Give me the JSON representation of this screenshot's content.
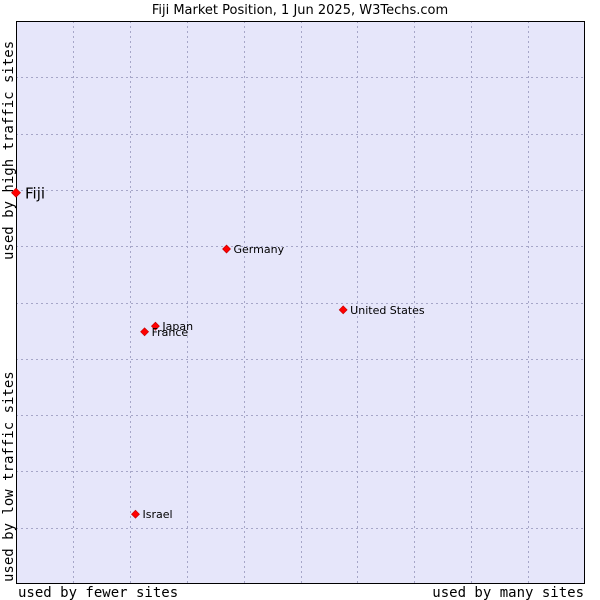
{
  "chart_data": {
    "type": "scatter",
    "title": "Fiji Market Position, 1 Jun 2025, W3Techs.com",
    "xlabel_left": "used by fewer sites",
    "xlabel_right": "used by many sites",
    "ylabel_bottom": "used by low traffic sites",
    "ylabel_top": "used by high traffic sites",
    "xlim": [
      0,
      100
    ],
    "ylim": [
      0,
      100
    ],
    "grid": true,
    "points": [
      {
        "name": "Fiji",
        "x": 0,
        "y": 69.5,
        "highlight": true
      },
      {
        "name": "Germany",
        "x": 37,
        "y": 59.5
      },
      {
        "name": "United States",
        "x": 57.5,
        "y": 48.7
      },
      {
        "name": "Japan",
        "x": 24.5,
        "y": 45.8
      },
      {
        "name": "France",
        "x": 22.6,
        "y": 44.8
      },
      {
        "name": "Israel",
        "x": 21,
        "y": 12.4
      }
    ],
    "colors": {
      "plot_bg": "#e6e6fa",
      "grid": "#a6a6c8",
      "marker": "#ff0000",
      "marker_edge": "#c00000"
    }
  }
}
